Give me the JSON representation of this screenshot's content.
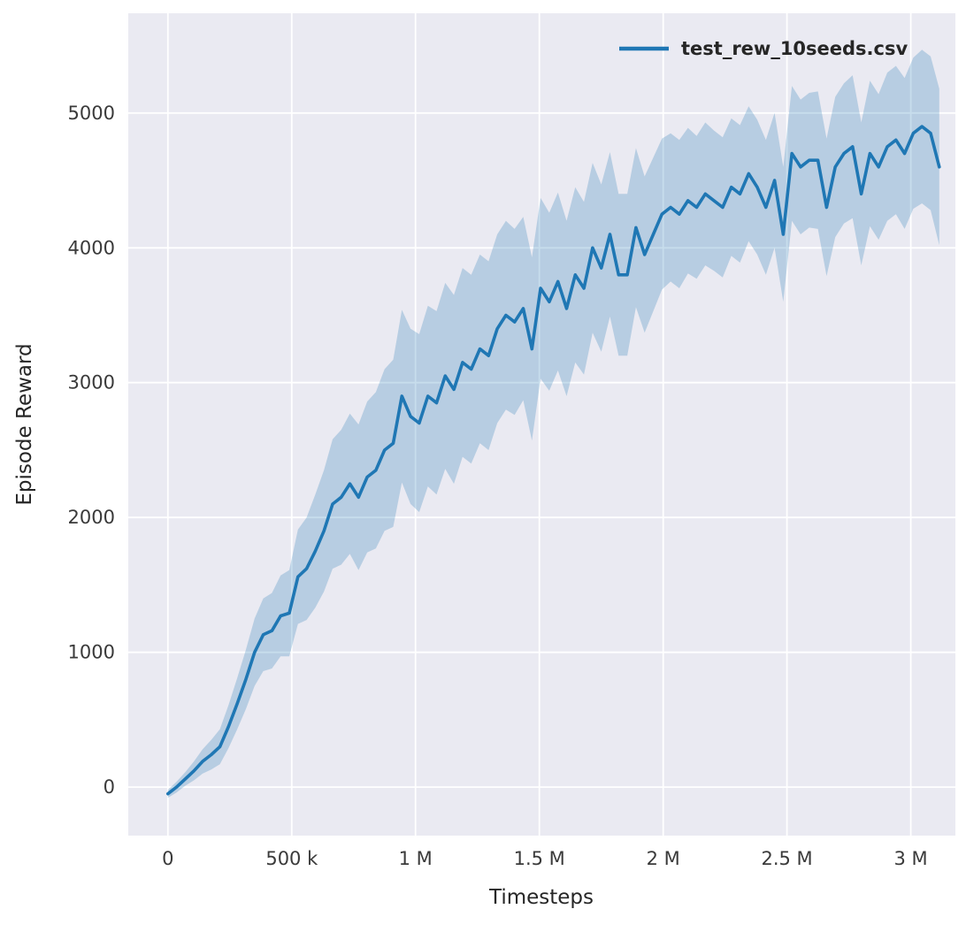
{
  "figure": {
    "background": "#ffffff",
    "axes_background": "#eaeaf2",
    "grid_color": "#ffffff",
    "line_color": "#1f77b4",
    "band_color": "#1f77b4",
    "band_opacity": 0.25,
    "text_color": "#262626"
  },
  "chart_data": {
    "type": "line",
    "title": "",
    "xlabel": "Timesteps",
    "ylabel": "Episode Reward",
    "grid": true,
    "legend_position": "upper right",
    "legend": [
      {
        "label": "test_rew_10seeds.csv",
        "color": "#1f77b4"
      }
    ],
    "xlim": [
      -160000,
      3180000
    ],
    "ylim": [
      -360,
      5740
    ],
    "xticks": [
      {
        "value": 0,
        "label": "0"
      },
      {
        "value": 500000,
        "label": "500 k"
      },
      {
        "value": 1000000,
        "label": "1 M"
      },
      {
        "value": 1500000,
        "label": "1.5 M"
      },
      {
        "value": 2000000,
        "label": "2 M"
      },
      {
        "value": 2500000,
        "label": "2.5 M"
      },
      {
        "value": 3000000,
        "label": "3 M"
      }
    ],
    "yticks": [
      {
        "value": 0,
        "label": "0"
      },
      {
        "value": 1000,
        "label": "1000"
      },
      {
        "value": 2000,
        "label": "2000"
      },
      {
        "value": 3000,
        "label": "3000"
      },
      {
        "value": 4000,
        "label": "4000"
      },
      {
        "value": 5000,
        "label": "5000"
      }
    ],
    "series": [
      {
        "name": "test_rew_10seeds.csv",
        "x": [
          0,
          35000,
          70000,
          105000,
          140000,
          175000,
          210000,
          245000,
          280000,
          315000,
          350000,
          385000,
          420000,
          455000,
          490000,
          525000,
          560000,
          595000,
          630000,
          665000,
          700000,
          735000,
          770000,
          805000,
          840000,
          875000,
          910000,
          945000,
          980000,
          1015000,
          1050000,
          1085000,
          1120000,
          1155000,
          1190000,
          1225000,
          1260000,
          1295000,
          1330000,
          1365000,
          1400000,
          1435000,
          1470000,
          1505000,
          1540000,
          1575000,
          1610000,
          1645000,
          1680000,
          1715000,
          1750000,
          1785000,
          1820000,
          1855000,
          1890000,
          1925000,
          1960000,
          1995000,
          2030000,
          2065000,
          2100000,
          2135000,
          2170000,
          2205000,
          2240000,
          2275000,
          2310000,
          2345000,
          2380000,
          2415000,
          2450000,
          2485000,
          2520000,
          2555000,
          2590000,
          2625000,
          2660000,
          2695000,
          2730000,
          2765000,
          2800000,
          2835000,
          2870000,
          2905000,
          2940000,
          2975000,
          3010000,
          3045000,
          3080000,
          3115000
        ],
        "values": [
          -50,
          0,
          60,
          120,
          190,
          240,
          300,
          450,
          620,
          800,
          1000,
          1130,
          1160,
          1270,
          1290,
          1560,
          1620,
          1750,
          1900,
          2100,
          2150,
          2250,
          2150,
          2300,
          2350,
          2500,
          2550,
          2900,
          2750,
          2700,
          2900,
          2850,
          3050,
          2950,
          3150,
          3100,
          3250,
          3200,
          3400,
          3500,
          3450,
          3550,
          3250,
          3700,
          3600,
          3750,
          3550,
          3800,
          3700,
          4000,
          3850,
          4100,
          3800,
          3800,
          4150,
          3950,
          4100,
          4250,
          4300,
          4250,
          4350,
          4300,
          4400,
          4350,
          4300,
          4450,
          4400,
          4550,
          4450,
          4300,
          4500,
          4100,
          4700,
          4600,
          4650,
          4650,
          4300,
          4600,
          4700,
          4750,
          4400,
          4700,
          4600,
          4750,
          4800,
          4700,
          4850,
          4900,
          4850,
          4600
        ],
        "band_spread": [
          30,
          40,
          50,
          70,
          90,
          110,
          130,
          160,
          190,
          220,
          250,
          270,
          280,
          300,
          320,
          350,
          380,
          420,
          450,
          480,
          500,
          520,
          540,
          560,
          580,
          600,
          620,
          640,
          650,
          660,
          670,
          680,
          690,
          700,
          700,
          700,
          700,
          700,
          700,
          700,
          690,
          680,
          680,
          670,
          660,
          660,
          650,
          650,
          640,
          630,
          620,
          610,
          600,
          600,
          590,
          580,
          570,
          560,
          550,
          550,
          540,
          530,
          530,
          520,
          520,
          510,
          510,
          500,
          500,
          500,
          500,
          500,
          500,
          500,
          500,
          510,
          510,
          520,
          520,
          530,
          530,
          540,
          540,
          550,
          550,
          560,
          560,
          570,
          570,
          580
        ]
      }
    ]
  }
}
